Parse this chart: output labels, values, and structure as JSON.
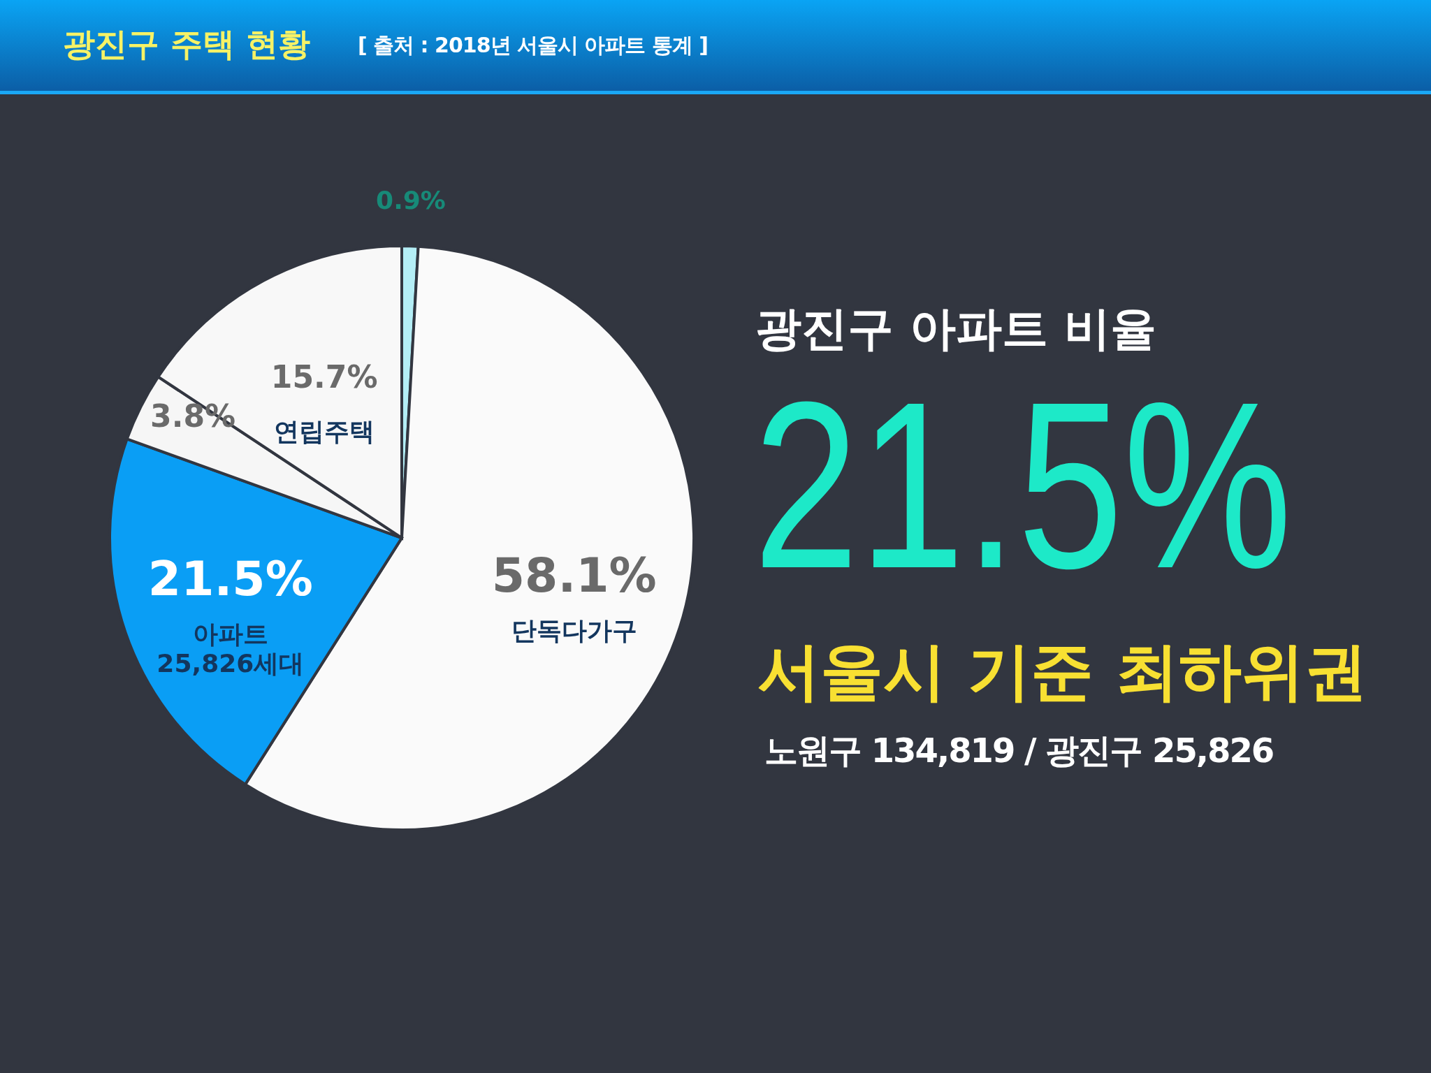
{
  "chart_data": {
    "type": "pie",
    "title": "광진구 주택 현황",
    "subtitle": "[ 출처 : 2018년 서울시 아파트 통계 ]",
    "categories": [
      null,
      "단독다가구",
      "아파트\n25,826세대",
      null,
      "연립주택"
    ],
    "values": [
      0.9,
      58.1,
      21.5,
      3.8,
      15.7
    ],
    "value_labels": [
      "0.9%",
      "58.1%",
      "21.5%",
      "3.8%",
      "15.7%"
    ],
    "colors": [
      "#b4eef6",
      "#fafafa",
      "#0a9ef5",
      "#f6f6f6",
      "#f8f8f8"
    ],
    "annotations": [
      "광진구 아파트 비율",
      "21.5%",
      "서울시 기준 최하위권",
      "노원구 134,819 / 광진구 25,826"
    ]
  }
}
